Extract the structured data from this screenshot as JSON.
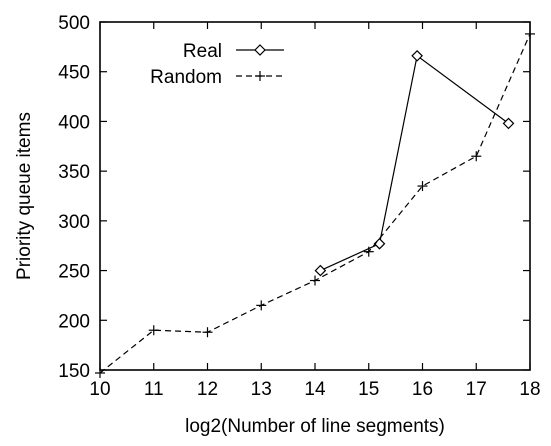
{
  "chart_data": {
    "type": "line",
    "xlabel": "log2(Number of line segments)",
    "ylabel": "Priority queue items",
    "xlim": [
      10,
      18
    ],
    "ylim": [
      150,
      500
    ],
    "xticks": [
      "10",
      "11",
      "12",
      "13",
      "14",
      "15",
      "16",
      "17",
      "18"
    ],
    "yticks": [
      "150",
      "200",
      "250",
      "300",
      "350",
      "400",
      "450",
      "500"
    ],
    "grid": false,
    "legend_position": "top-left",
    "series": [
      {
        "name": "Real",
        "style": "solid",
        "marker": "diamond",
        "x": [
          14.1,
          15.2,
          15.9,
          17.6
        ],
        "y": [
          250,
          277,
          466,
          398
        ]
      },
      {
        "name": "Random",
        "style": "dashed",
        "marker": "plus",
        "x": [
          10,
          11,
          12,
          13,
          14,
          15,
          16,
          17,
          18
        ],
        "y": [
          147,
          190,
          188,
          215,
          240,
          269,
          335,
          365,
          488
        ]
      }
    ]
  }
}
